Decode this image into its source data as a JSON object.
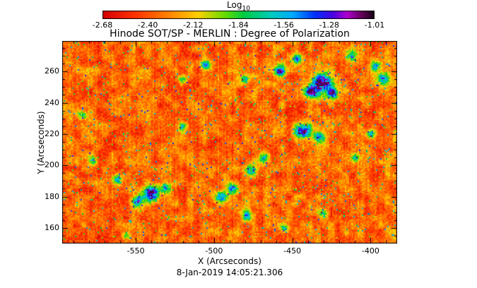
{
  "colorbar": {
    "label_main": "Log",
    "label_sub": "10",
    "tick_labels": [
      "-2.68",
      "-2.40",
      "-2.12",
      "-1.84",
      "-1.56",
      "-1.28",
      "-1.01"
    ]
  },
  "chart_data": {
    "type": "heatmap",
    "title": "Hinode SOT/SP - MERLIN : Degree of Polarization",
    "caption": "8-Jan-2019 14:05:21.306",
    "xlabel": "X (Arcseconds)",
    "ylabel": "Y (Arcseconds)",
    "xlim": [
      -597,
      -383
    ],
    "ylim": [
      150,
      279.5
    ],
    "x_ticks": [
      -550,
      -500,
      -450,
      -400
    ],
    "y_ticks": [
      160,
      180,
      200,
      220,
      240,
      260
    ],
    "x_minor_step": 10,
    "y_minor_step": 5,
    "value_scale": "log10",
    "value_range": [
      -2.68,
      -1.01
    ],
    "colorbar_ticks": [
      -2.68,
      -2.4,
      -2.12,
      -1.84,
      -1.56,
      -1.28,
      -1.01
    ],
    "colormap_stops": [
      [
        0.0,
        "#d40000"
      ],
      [
        0.12,
        "#ff3300"
      ],
      [
        0.25,
        "#ff8800"
      ],
      [
        0.35,
        "#ffd000"
      ],
      [
        0.45,
        "#66dd00"
      ],
      [
        0.52,
        "#00cc44"
      ],
      [
        0.62,
        "#00ccbb"
      ],
      [
        0.7,
        "#00aaff"
      ],
      [
        0.78,
        "#0033ff"
      ],
      [
        0.85,
        "#4b00e0"
      ],
      [
        0.9,
        "#b000d0"
      ],
      [
        0.96,
        "#58004e"
      ],
      [
        1.0,
        "#140014"
      ]
    ],
    "background": {
      "base_value": -2.63,
      "smooth_amplitude": 0.33,
      "speckle_amplitude": 0.24,
      "spike_probability": 0.028,
      "column_stripe_amplitude": 0.1
    },
    "hotspots": [
      {
        "x": -458,
        "y": 260,
        "a": 1.25,
        "r": 2.5
      },
      {
        "x": -431,
        "y": 253,
        "a": 1.4,
        "r": 4.5
      },
      {
        "x": -438,
        "y": 247,
        "a": 1.1,
        "r": 3
      },
      {
        "x": -424,
        "y": 246,
        "a": 1.0,
        "r": 2.5
      },
      {
        "x": -443,
        "y": 222,
        "a": 1.3,
        "r": 3.5
      },
      {
        "x": -433,
        "y": 218,
        "a": 0.9,
        "r": 2.5
      },
      {
        "x": -540,
        "y": 182,
        "a": 1.3,
        "r": 3.5
      },
      {
        "x": -549,
        "y": 177,
        "a": 1.1,
        "r": 2.5
      },
      {
        "x": -531,
        "y": 186,
        "a": 0.9,
        "r": 2.5
      },
      {
        "x": -562,
        "y": 191,
        "a": 0.8,
        "r": 2
      },
      {
        "x": -479,
        "y": 168,
        "a": 0.8,
        "r": 2.5
      },
      {
        "x": -496,
        "y": 180,
        "a": 0.85,
        "r": 3
      },
      {
        "x": -488,
        "y": 186,
        "a": 0.8,
        "r": 2.5
      },
      {
        "x": -476,
        "y": 197,
        "a": 0.85,
        "r": 2.5
      },
      {
        "x": -468,
        "y": 205,
        "a": 0.8,
        "r": 2.5
      },
      {
        "x": -391,
        "y": 255,
        "a": 0.9,
        "r": 3
      },
      {
        "x": -397,
        "y": 263,
        "a": 0.8,
        "r": 2.5
      },
      {
        "x": -412,
        "y": 270,
        "a": 0.8,
        "r": 2.5
      },
      {
        "x": -447,
        "y": 268,
        "a": 0.9,
        "r": 2
      },
      {
        "x": -480,
        "y": 255,
        "a": 0.7,
        "r": 2
      },
      {
        "x": -505,
        "y": 264,
        "a": 0.8,
        "r": 2
      },
      {
        "x": -584,
        "y": 232,
        "a": 0.7,
        "r": 2
      },
      {
        "x": -577,
        "y": 203,
        "a": 0.6,
        "r": 2
      },
      {
        "x": -520,
        "y": 225,
        "a": 0.6,
        "r": 2
      },
      {
        "x": -556,
        "y": 155,
        "a": 0.6,
        "r": 2
      },
      {
        "x": -410,
        "y": 205,
        "a": 0.7,
        "r": 2
      },
      {
        "x": -400,
        "y": 220,
        "a": 0.6,
        "r": 2
      },
      {
        "x": -430,
        "y": 170,
        "a": 0.6,
        "r": 2
      },
      {
        "x": -455,
        "y": 160,
        "a": 0.6,
        "r": 2
      },
      {
        "x": -520,
        "y": 255,
        "a": 0.6,
        "r": 2
      }
    ]
  }
}
